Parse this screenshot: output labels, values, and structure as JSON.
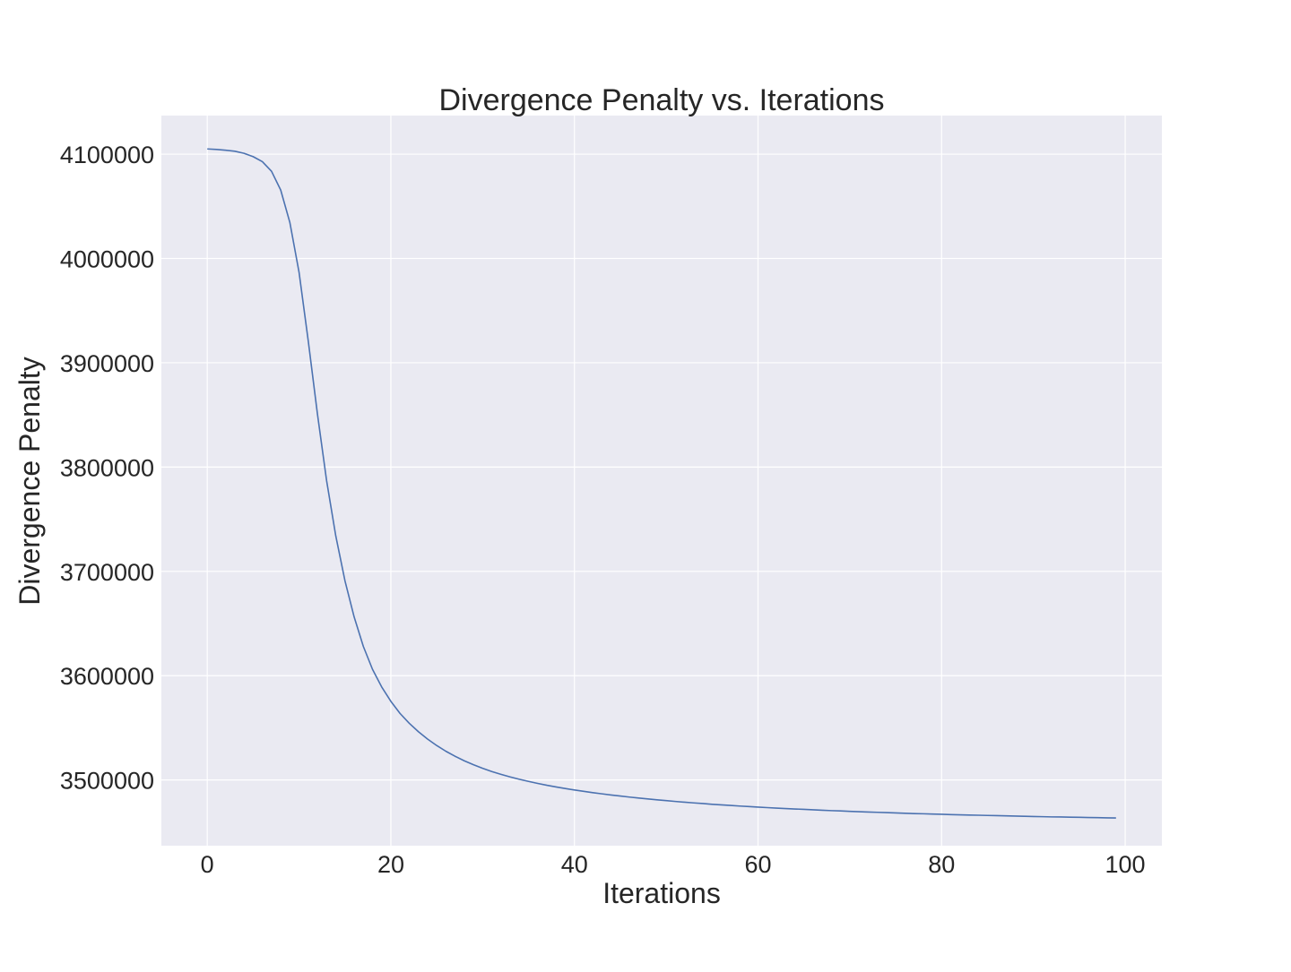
{
  "chart_data": {
    "type": "line",
    "title": "Divergence Penalty vs. Iterations",
    "xlabel": "Iterations",
    "ylabel": "Divergence Penalty",
    "xlim": [
      -5,
      104
    ],
    "ylim": [
      3437000,
      4137000
    ],
    "xticks": [
      0,
      20,
      40,
      60,
      80,
      100
    ],
    "yticks": [
      3500000,
      3600000,
      3700000,
      3800000,
      3900000,
      4000000,
      4100000
    ],
    "grid": true,
    "legend": "none",
    "colors": {
      "line": "#4c72b0",
      "plot_bg": "#eaeaf2",
      "grid": "#ffffff",
      "text": "#262626"
    },
    "series": [
      {
        "x": [
          0,
          1,
          2,
          3,
          4,
          5,
          6,
          7,
          8,
          9,
          10,
          11,
          12,
          13,
          14,
          15,
          16,
          17,
          18,
          19,
          20,
          21,
          22,
          23,
          24,
          25,
          26,
          27,
          28,
          29,
          30,
          31,
          32,
          33,
          34,
          35,
          36,
          37,
          38,
          39,
          40,
          41,
          42,
          43,
          44,
          45,
          46,
          47,
          48,
          49,
          50,
          51,
          52,
          53,
          54,
          55,
          56,
          57,
          58,
          59,
          60,
          61,
          62,
          63,
          64,
          65,
          66,
          67,
          68,
          69,
          70,
          71,
          72,
          73,
          74,
          75,
          76,
          77,
          78,
          79,
          80,
          81,
          82,
          83,
          84,
          85,
          86,
          87,
          88,
          89,
          90,
          91,
          92,
          93,
          94,
          95,
          96,
          97,
          98,
          99
        ],
        "values": [
          4105000,
          4104500,
          4103800,
          4102800,
          4100800,
          4097600,
          4092800,
          4083600,
          4065600,
          4034400,
          3986700,
          3921000,
          3851000,
          3787000,
          3734000,
          3691000,
          3656300,
          3628100,
          3606100,
          3589200,
          3575400,
          3563800,
          3554400,
          3546300,
          3539200,
          3533000,
          3527500,
          3522700,
          3518400,
          3514600,
          3511200,
          3508100,
          3505400,
          3502900,
          3500700,
          3498600,
          3496700,
          3494900,
          3493300,
          3491800,
          3490400,
          3489100,
          3487800,
          3486700,
          3485600,
          3484600,
          3483600,
          3482700,
          3481800,
          3481000,
          3480200,
          3479400,
          3478700,
          3478000,
          3477400,
          3476700,
          3476100,
          3475600,
          3475000,
          3474500,
          3474000,
          3473500,
          3473000,
          3472600,
          3472200,
          3471800,
          3471400,
          3471000,
          3470600,
          3470300,
          3469900,
          3469600,
          3469300,
          3469000,
          3468700,
          3468400,
          3468100,
          3467800,
          3467600,
          3467300,
          3467100,
          3466800,
          3466600,
          3466400,
          3466200,
          3466000,
          3465800,
          3465600,
          3465400,
          3465200,
          3465000,
          3464800,
          3464600,
          3464500,
          3464300,
          3464200,
          3464000,
          3463900,
          3463700,
          3463600
        ]
      }
    ]
  }
}
